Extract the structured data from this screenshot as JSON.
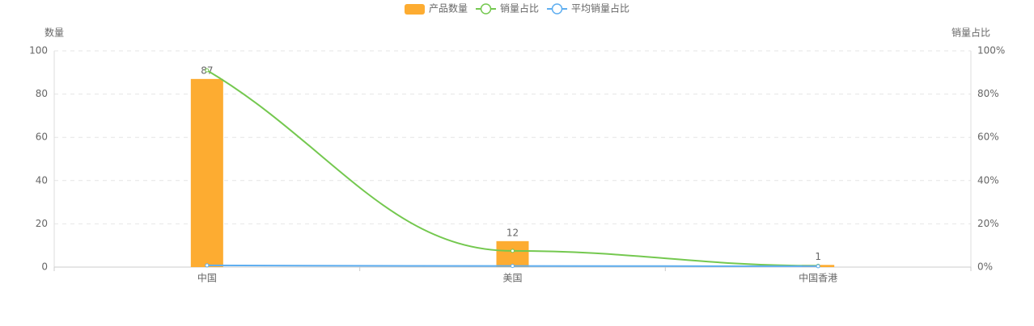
{
  "chart_data": {
    "type": "bar-line",
    "y_axis_label": "数量",
    "y2_axis_label": "销量占比",
    "categories": [
      "中国",
      "美国",
      "中国香港"
    ],
    "ylim": [
      0,
      100
    ],
    "yticks": [
      0,
      20,
      40,
      60,
      80,
      100
    ],
    "y2lim": [
      0,
      100
    ],
    "y2ticks": [
      {
        "value": 0,
        "label": "0%"
      },
      {
        "value": 20,
        "label": "20%"
      },
      {
        "value": 40,
        "label": "40%"
      },
      {
        "value": 60,
        "label": "60%"
      },
      {
        "value": 80,
        "label": "80%"
      },
      {
        "value": 100,
        "label": "100%"
      }
    ],
    "grid": true,
    "series": [
      {
        "name": "产品数量",
        "kind": "bar",
        "color": "#fdac31",
        "values": [
          87,
          12,
          1
        ]
      },
      {
        "name": "销量占比",
        "kind": "line",
        "axis": "y2",
        "color": "#74c84f",
        "values": [
          91,
          7.5,
          0.6
        ]
      },
      {
        "name": "平均销量占比",
        "kind": "line",
        "axis": "y2",
        "color": "#5eaef0",
        "values": [
          0.8,
          0.5,
          0.4
        ]
      }
    ]
  }
}
